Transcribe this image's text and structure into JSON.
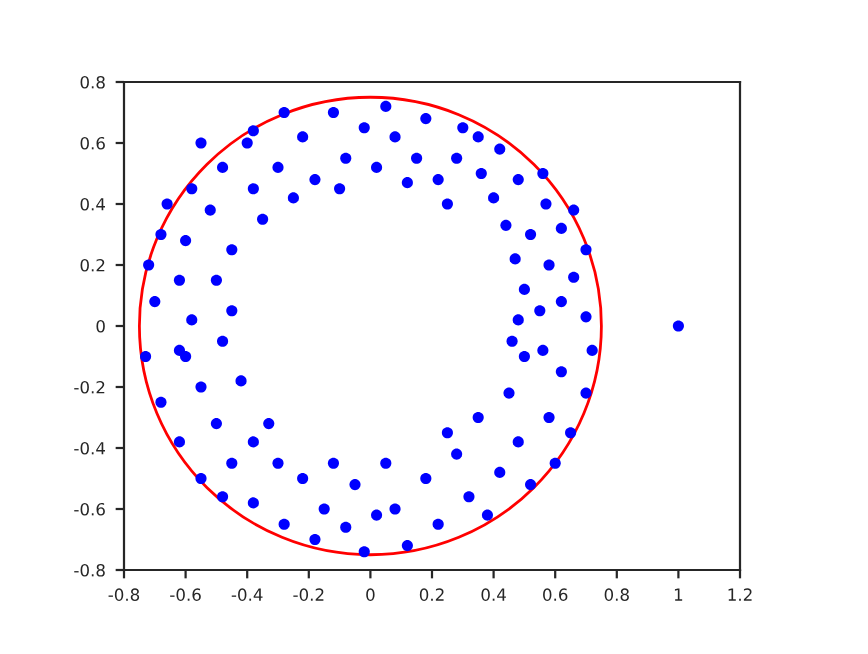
{
  "chart_data": {
    "type": "scatter",
    "xlim": [
      -0.8,
      1.2
    ],
    "ylim": [
      -0.8,
      0.8
    ],
    "xticks": [
      -0.8,
      -0.6,
      -0.4,
      -0.2,
      0,
      0.2,
      0.4,
      0.6,
      0.8,
      1,
      1.2
    ],
    "yticks": [
      -0.8,
      -0.6,
      -0.4,
      -0.2,
      0,
      0.2,
      0.4,
      0.6,
      0.8
    ],
    "marker": "circle",
    "grid": false,
    "legend": false,
    "series": [
      {
        "color": "#0000ff",
        "x": [
          0.48,
          0.55,
          0.62,
          0.7,
          0.5,
          0.66,
          0.58,
          0.47,
          0.7,
          0.52,
          0.62,
          0.44,
          0.57,
          0.4,
          0.66,
          0.48,
          0.36,
          0.56,
          0.28,
          0.42,
          0.22,
          0.3,
          0.15,
          0.18,
          0.08,
          0.05,
          0.12,
          0.02,
          0.25,
          0.35,
          -0.02,
          -0.08,
          -0.12,
          -0.18,
          -0.22,
          -0.3,
          -0.28,
          -0.38,
          -0.4,
          -0.48,
          -0.35,
          -0.52,
          -0.58,
          -0.45,
          -0.6,
          -0.68,
          -0.5,
          -0.62,
          -0.72,
          -0.45,
          -0.58,
          -0.7,
          -0.66,
          -0.25,
          -0.1,
          -0.55,
          -0.38,
          -0.48,
          -0.62,
          -0.73,
          -0.42,
          -0.55,
          -0.68,
          -0.5,
          -0.62,
          -0.38,
          -0.45,
          -0.55,
          -0.3,
          -0.38,
          -0.22,
          -0.28,
          -0.12,
          -0.15,
          -0.18,
          -0.05,
          -0.08,
          -0.02,
          -0.48,
          -0.33,
          -0.6,
          0.05,
          0.08,
          0.12,
          0.18,
          0.22,
          0.28,
          0.32,
          0.35,
          0.42,
          0.48,
          0.52,
          0.45,
          0.58,
          0.65,
          0.5,
          0.62,
          0.7,
          0.46,
          0.56,
          0.72,
          0.38,
          0.25,
          0.6,
          0.02,
          1.0
        ],
        "values": [
          0.02,
          0.05,
          0.08,
          0.03,
          0.12,
          0.16,
          0.2,
          0.22,
          0.25,
          0.3,
          0.32,
          0.33,
          0.4,
          0.42,
          0.38,
          0.48,
          0.5,
          0.5,
          0.55,
          0.58,
          0.48,
          0.65,
          0.55,
          0.68,
          0.62,
          0.72,
          0.47,
          0.52,
          0.4,
          0.62,
          0.65,
          0.55,
          0.7,
          0.48,
          0.62,
          0.52,
          0.7,
          0.45,
          0.6,
          0.52,
          0.35,
          0.38,
          0.45,
          0.25,
          0.28,
          0.3,
          0.15,
          0.15,
          0.2,
          0.05,
          0.02,
          0.08,
          0.4,
          0.42,
          0.45,
          0.6,
          0.64,
          -0.05,
          -0.08,
          -0.1,
          -0.18,
          -0.2,
          -0.25,
          -0.32,
          -0.38,
          -0.38,
          -0.45,
          -0.5,
          -0.45,
          -0.58,
          -0.5,
          -0.65,
          -0.45,
          -0.6,
          -0.7,
          -0.52,
          -0.66,
          -0.74,
          -0.56,
          -0.32,
          -0.1,
          -0.45,
          -0.6,
          -0.72,
          -0.5,
          -0.65,
          -0.42,
          -0.56,
          -0.3,
          -0.48,
          -0.38,
          -0.52,
          -0.22,
          -0.3,
          -0.35,
          -0.1,
          -0.15,
          -0.22,
          -0.05,
          -0.08,
          -0.08,
          -0.62,
          -0.35,
          -0.45,
          -0.62,
          0.0
        ]
      }
    ]
  }
}
